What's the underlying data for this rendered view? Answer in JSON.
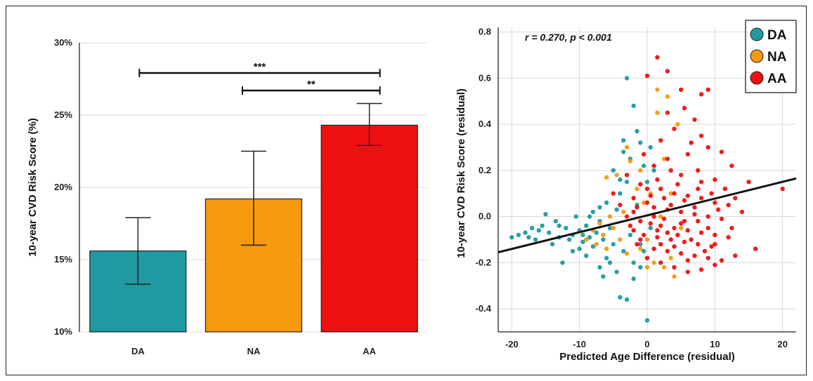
{
  "chart_data": [
    {
      "type": "bar",
      "categories": [
        "DA",
        "NA",
        "AA"
      ],
      "values": [
        15.6,
        19.2,
        24.3
      ],
      "error_bars": [
        [
          13.3,
          17.9
        ],
        [
          16.0,
          22.5
        ],
        [
          22.9,
          25.8
        ]
      ],
      "colors": [
        "#1f9aa2",
        "#f59a0f",
        "#ee1010"
      ],
      "ylabel": "10-year CVD Risk Score (%)",
      "xlabel": "",
      "ylim": [
        10,
        30
      ],
      "yticks": [
        "10%",
        "15%",
        "20%",
        "25%",
        "30%"
      ],
      "grid": true,
      "significance": [
        {
          "from": "DA",
          "to": "AA",
          "label": "***"
        },
        {
          "from": "NA",
          "to": "AA",
          "label": "**"
        }
      ]
    },
    {
      "type": "scatter",
      "xlabel": "Predicted Age Difference (residual)",
      "ylabel": "10-year CVD Risk Score (residual)",
      "xlim": [
        -22,
        22
      ],
      "ylim": [
        -0.5,
        0.82
      ],
      "xticks": [
        "-20",
        "-10",
        "0",
        "10",
        "20"
      ],
      "yticks": [
        "-0.4",
        "-0.2",
        "0.0",
        "0.2",
        "0.4",
        "0.6",
        "0.8"
      ],
      "annotation": "r = 0.270, p < 0.001",
      "legend_position": "top-right",
      "grid": true,
      "fit_line": {
        "x": [
          -22,
          22
        ],
        "y": [
          -0.155,
          0.165
        ],
        "color": "#111111"
      },
      "series": [
        {
          "name": "DA",
          "color": "#1f9aa2",
          "points": [
            [
              -20,
              -0.09
            ],
            [
              -19,
              -0.08
            ],
            [
              -18,
              -0.07
            ],
            [
              -17.5,
              -0.09
            ],
            [
              -17,
              -0.05
            ],
            [
              -16.5,
              -0.1
            ],
            [
              -16,
              -0.06
            ],
            [
              -15.5,
              -0.04
            ],
            [
              -15,
              0.01
            ],
            [
              -14.5,
              -0.07
            ],
            [
              -14,
              -0.12
            ],
            [
              -13.5,
              -0.02
            ],
            [
              -13,
              -0.09
            ],
            [
              -12.5,
              -0.2
            ],
            [
              -12,
              -0.05
            ],
            [
              -11.5,
              -0.1
            ],
            [
              -11,
              -0.08
            ],
            [
              -10.5,
              0.0
            ],
            [
              -10,
              -0.14
            ],
            [
              -10,
              -0.06
            ],
            [
              -9.5,
              -0.11
            ],
            [
              -9,
              -0.04
            ],
            [
              -9,
              -0.17
            ],
            [
              -8.5,
              -0.09
            ],
            [
              -8,
              0.02
            ],
            [
              -8,
              -0.13
            ],
            [
              -7.5,
              -0.07
            ],
            [
              -7,
              -0.22
            ],
            [
              -7,
              0.04
            ],
            [
              -6.5,
              -0.1
            ],
            [
              -6,
              0.06
            ],
            [
              -6,
              -0.18
            ],
            [
              -5.5,
              -0.05
            ],
            [
              -5,
              -0.12
            ],
            [
              -5,
              0.2
            ],
            [
              -4.5,
              0.03
            ],
            [
              -4.5,
              -0.24
            ],
            [
              -4,
              0.1
            ],
            [
              -4,
              -0.35
            ],
            [
              -3.5,
              0.28
            ],
            [
              -3.5,
              -0.15
            ],
            [
              -3,
              0.6
            ],
            [
              -3,
              0.15
            ],
            [
              -3,
              -0.36
            ],
            [
              -2.5,
              -0.08
            ],
            [
              -2.5,
              0.25
            ],
            [
              -2,
              0.48
            ],
            [
              -2,
              -0.2
            ],
            [
              -1.5,
              0.37
            ],
            [
              -1.5,
              0.05
            ],
            [
              -1,
              -0.12
            ],
            [
              -1,
              0.32
            ],
            [
              -0.5,
              0.22
            ],
            [
              -0.5,
              -0.15
            ],
            [
              0,
              -0.45
            ],
            [
              0,
              0.15
            ],
            [
              0.5,
              -0.05
            ],
            [
              0.5,
              0.3
            ],
            [
              1,
              0.2
            ],
            [
              -11,
              -0.15
            ],
            [
              -13,
              -0.04
            ],
            [
              -6.5,
              -0.26
            ],
            [
              -8.5,
              0.0
            ],
            [
              -5.5,
              -0.2
            ],
            [
              -2,
              -0.27
            ],
            [
              -3.5,
              0.33
            ],
            [
              -1,
              -0.22
            ],
            [
              -4,
              0.16
            ],
            [
              -7,
              -0.02
            ],
            [
              -9.5,
              -0.08
            ]
          ]
        },
        {
          "name": "NA",
          "color": "#f59a0f",
          "points": [
            [
              -9,
              -0.1
            ],
            [
              -8,
              -0.06
            ],
            [
              -7.5,
              -0.12
            ],
            [
              -7,
              -0.03
            ],
            [
              -6.5,
              -0.08
            ],
            [
              -6,
              -0.14
            ],
            [
              -5.5,
              0.0
            ],
            [
              -5,
              -0.05
            ],
            [
              -4.5,
              0.18
            ],
            [
              -4,
              -0.1
            ],
            [
              -3.5,
              0.02
            ],
            [
              -3,
              -0.16
            ],
            [
              -2.5,
              0.24
            ],
            [
              -2,
              -0.06
            ],
            [
              -1.5,
              0.12
            ],
            [
              -1,
              -0.14
            ],
            [
              -0.5,
              0.06
            ],
            [
              0,
              -0.1
            ],
            [
              0.5,
              0.1
            ],
            [
              1,
              -0.2
            ],
            [
              1.5,
              0.55
            ],
            [
              2,
              0.0
            ],
            [
              2.5,
              -0.22
            ],
            [
              3,
              0.52
            ],
            [
              3.5,
              0.1
            ],
            [
              4,
              -0.26
            ],
            [
              4.5,
              0.4
            ],
            [
              5,
              -0.05
            ],
            [
              -6,
              0.17
            ],
            [
              -3,
              0.3
            ],
            [
              2.5,
              0.25
            ],
            [
              -1,
              0.2
            ],
            [
              0,
              -0.22
            ],
            [
              3.5,
              -0.18
            ],
            [
              1.5,
              0.45
            ]
          ]
        },
        {
          "name": "AA",
          "color": "#ee1010",
          "points": [
            [
              1.5,
              0.69
            ],
            [
              0,
              0.61
            ],
            [
              3,
              0.63
            ],
            [
              5,
              0.55
            ],
            [
              8,
              0.53
            ],
            [
              9,
              0.55
            ],
            [
              5.5,
              0.47
            ],
            [
              3,
              0.45
            ],
            [
              7,
              0.42
            ],
            [
              4,
              0.38
            ],
            [
              8,
              0.35
            ],
            [
              2,
              0.33
            ],
            [
              9,
              0.3
            ],
            [
              11,
              0.28
            ],
            [
              6,
              0.27
            ],
            [
              3,
              0.25
            ],
            [
              1,
              0.22
            ],
            [
              12.5,
              0.22
            ],
            [
              7.5,
              0.2
            ],
            [
              5,
              0.18
            ],
            [
              10,
              0.16
            ],
            [
              15,
              0.15
            ],
            [
              20,
              0.12
            ],
            [
              -1,
              0.14
            ],
            [
              2,
              0.12
            ],
            [
              4,
              0.1
            ],
            [
              6,
              0.09
            ],
            [
              8,
              0.08
            ],
            [
              10,
              0.06
            ],
            [
              12,
              0.05
            ],
            [
              14,
              0.02
            ],
            [
              -2,
              0.08
            ],
            [
              0,
              0.06
            ],
            [
              1,
              0.04
            ],
            [
              3,
              0.03
            ],
            [
              5,
              0.02
            ],
            [
              7,
              0.01
            ],
            [
              9,
              0.0
            ],
            [
              11,
              -0.01
            ],
            [
              -3,
              0.0
            ],
            [
              -1,
              -0.02
            ],
            [
              0.5,
              -0.03
            ],
            [
              2,
              -0.04
            ],
            [
              4,
              -0.05
            ],
            [
              6,
              -0.06
            ],
            [
              8,
              -0.07
            ],
            [
              10,
              -0.08
            ],
            [
              12,
              -0.09
            ],
            [
              -2,
              -0.06
            ],
            [
              -0.5,
              -0.08
            ],
            [
              1.5,
              -0.09
            ],
            [
              3.5,
              -0.1
            ],
            [
              5.5,
              -0.11
            ],
            [
              7.5,
              -0.12
            ],
            [
              9.5,
              -0.13
            ],
            [
              -1.5,
              -0.12
            ],
            [
              1,
              -0.14
            ],
            [
              3,
              -0.15
            ],
            [
              5,
              -0.16
            ],
            [
              7,
              -0.17
            ],
            [
              9,
              -0.18
            ],
            [
              11,
              -0.19
            ],
            [
              13,
              -0.17
            ],
            [
              16,
              -0.14
            ],
            [
              2,
              -0.2
            ],
            [
              4,
              -0.22
            ],
            [
              6,
              -0.24
            ],
            [
              8,
              -0.23
            ],
            [
              10,
              -0.21
            ],
            [
              0,
              -0.18
            ],
            [
              -2.5,
              -0.04
            ],
            [
              -4,
              0.05
            ],
            [
              -5,
              0.1
            ],
            [
              -3,
              0.18
            ],
            [
              -0.5,
              0.27
            ],
            [
              1.5,
              0.16
            ],
            [
              3.5,
              0.2
            ],
            [
              5.5,
              0.07
            ],
            [
              7.5,
              -0.02
            ],
            [
              9.5,
              0.1
            ],
            [
              11.5,
              0.12
            ],
            [
              6.5,
              0.32
            ],
            [
              4.5,
              0.14
            ],
            [
              2.5,
              -0.01
            ],
            [
              0.5,
              0.09
            ],
            [
              -1,
              -0.1
            ],
            [
              3,
              -0.07
            ],
            [
              5,
              -0.03
            ],
            [
              7,
              0.04
            ],
            [
              9,
              -0.05
            ],
            [
              8.5,
              -0.15
            ],
            [
              6,
              -0.19
            ],
            [
              4,
              -0.13
            ],
            [
              2,
              -0.12
            ],
            [
              1,
              0.0
            ],
            [
              -2,
              0.02
            ],
            [
              3.5,
              0.05
            ],
            [
              5.5,
              -0.02
            ],
            [
              7.5,
              0.12
            ],
            [
              10.5,
              0.03
            ],
            [
              12.5,
              -0.05
            ],
            [
              2.5,
              0.08
            ],
            [
              4.5,
              -0.08
            ],
            [
              6.5,
              -0.1
            ],
            [
              0,
              0.12
            ],
            [
              1.5,
              -0.06
            ],
            [
              -1.5,
              0.04
            ],
            [
              8,
              0.15
            ],
            [
              10,
              -0.12
            ],
            [
              13,
              0.08
            ]
          ]
        }
      ]
    }
  ]
}
